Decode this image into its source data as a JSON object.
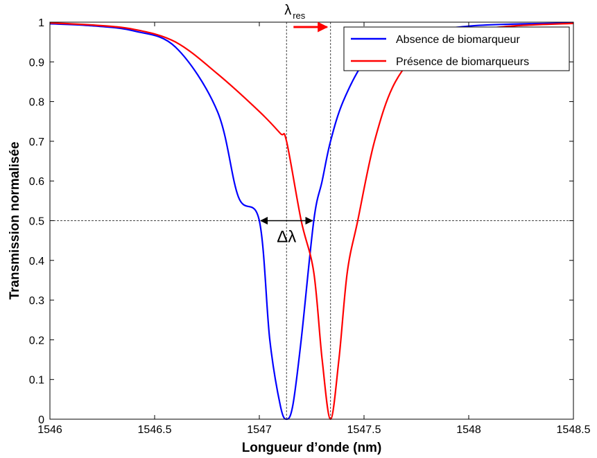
{
  "chart_data": {
    "type": "line",
    "title": "",
    "xlabel": "Longueur d’onde (nm)",
    "ylabel": "Transmission normalisée",
    "xlim": [
      1546,
      1548.5
    ],
    "ylim": [
      0,
      1
    ],
    "xticks": [
      1546,
      1546.5,
      1547,
      1547.5,
      1548,
      1548.5
    ],
    "xtick_labels": [
      "1546",
      "1546.5",
      "1547",
      "1547.5",
      "1548",
      "1548.5"
    ],
    "yticks": [
      0,
      0.1,
      0.2,
      0.3,
      0.4,
      0.5,
      0.6,
      0.7,
      0.8,
      0.9,
      1
    ],
    "ytick_labels": [
      "0",
      "0.1",
      "0.2",
      "0.3",
      "0.4",
      "0.5",
      "0.6",
      "0.7",
      "0.8",
      "0.9",
      "1"
    ],
    "grid": false,
    "legend_position": "top-right",
    "series": [
      {
        "name": "Absence de biomarqueur",
        "color": "#0000ff",
        "x": [
          1546.0,
          1546.2,
          1546.4,
          1546.6,
          1546.8,
          1546.9,
          1547.0,
          1547.05,
          1547.1,
          1547.13,
          1547.16,
          1547.2,
          1547.26,
          1547.3,
          1547.34,
          1547.4,
          1547.5,
          1547.6,
          1547.8,
          1548.0,
          1548.2,
          1548.5
        ],
        "y": [
          0.996,
          0.991,
          0.978,
          0.937,
          0.775,
          0.56,
          0.5,
          0.2,
          0.035,
          0.0,
          0.035,
          0.2,
          0.5,
          0.6,
          0.7,
          0.8,
          0.9,
          0.94,
          0.975,
          0.99,
          0.995,
          0.998
        ]
      },
      {
        "name": "Présence de biomarqueurs",
        "color": "#ff0000",
        "x": [
          1546.0,
          1546.2,
          1546.4,
          1546.6,
          1546.8,
          1547.0,
          1547.1,
          1547.13,
          1547.2,
          1547.26,
          1547.3,
          1547.34,
          1547.38,
          1547.42,
          1547.47,
          1547.55,
          1547.65,
          1547.8,
          1548.0,
          1548.2,
          1548.5
        ],
        "y": [
          0.998,
          0.993,
          0.982,
          0.95,
          0.87,
          0.775,
          0.72,
          0.7,
          0.5,
          0.37,
          0.15,
          0.0,
          0.15,
          0.37,
          0.5,
          0.7,
          0.85,
          0.94,
          0.975,
          0.99,
          0.997
        ]
      }
    ],
    "reference_lines": {
      "vertical_x": [
        1547.13,
        1547.34
      ],
      "horizontal_y": 0.5
    },
    "annotations": {
      "delta_lambda": {
        "text": "Δλ",
        "x_from": 1547.0,
        "x_to": 1547.26,
        "y": 0.5
      },
      "lambda_res": {
        "symbol": "λ",
        "subscript": "res",
        "arrow_x_from": 1547.15,
        "arrow_x_to": 1547.33,
        "arrow_color": "#ff0000"
      }
    }
  }
}
